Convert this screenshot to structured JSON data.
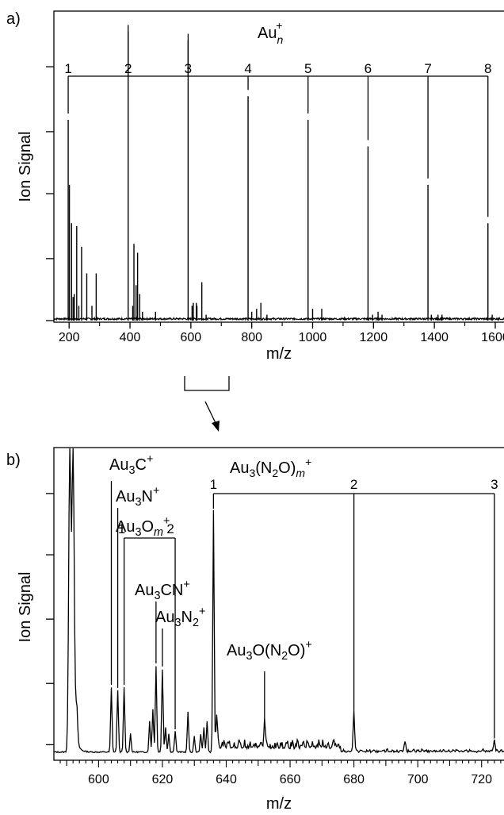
{
  "chart_data": [
    {
      "panel_label": "a)",
      "type": "line",
      "xlabel": "m/z",
      "ylabel": "Ion Signal",
      "xlim": [
        150,
        1660
      ],
      "ylim": [
        0,
        1.0
      ],
      "x_ticks": [
        200,
        400,
        600,
        800,
        1000,
        1200,
        1400,
        1600
      ],
      "series_title": "Au",
      "series_sub": "n",
      "series_sup": "+",
      "cluster_labels": [
        "1",
        "2",
        "3",
        "4",
        "5",
        "6",
        "7",
        "8"
      ],
      "cluster_mz": [
        197,
        394,
        591,
        788,
        985,
        1182,
        1379,
        1576
      ],
      "peaks": [
        {
          "x": 197,
          "y": 0.68
        },
        {
          "x": 201,
          "y": 0.46
        },
        {
          "x": 208,
          "y": 0.33
        },
        {
          "x": 213,
          "y": 0.08
        },
        {
          "x": 217,
          "y": 0.09
        },
        {
          "x": 225,
          "y": 0.32
        },
        {
          "x": 232,
          "y": 0.05
        },
        {
          "x": 241,
          "y": 0.25
        },
        {
          "x": 258,
          "y": 0.16
        },
        {
          "x": 275,
          "y": 0.05
        },
        {
          "x": 289,
          "y": 0.16
        },
        {
          "x": 394,
          "y": 0.98
        },
        {
          "x": 409,
          "y": 0.05
        },
        {
          "x": 413,
          "y": 0.26
        },
        {
          "x": 420,
          "y": 0.12
        },
        {
          "x": 425,
          "y": 0.23
        },
        {
          "x": 432,
          "y": 0.09
        },
        {
          "x": 441,
          "y": 0.03
        },
        {
          "x": 484,
          "y": 0.03
        },
        {
          "x": 591,
          "y": 0.95
        },
        {
          "x": 604,
          "y": 0.05
        },
        {
          "x": 608,
          "y": 0.06
        },
        {
          "x": 618,
          "y": 0.06
        },
        {
          "x": 620,
          "y": 0.05
        },
        {
          "x": 636,
          "y": 0.13
        },
        {
          "x": 650,
          "y": 0.02
        },
        {
          "x": 788,
          "y": 0.76
        },
        {
          "x": 800,
          "y": 0.03
        },
        {
          "x": 816,
          "y": 0.04
        },
        {
          "x": 830,
          "y": 0.06
        },
        {
          "x": 850,
          "y": 0.02
        },
        {
          "x": 985,
          "y": 0.68
        },
        {
          "x": 1000,
          "y": 0.04
        },
        {
          "x": 1030,
          "y": 0.04
        },
        {
          "x": 1182,
          "y": 0.59
        },
        {
          "x": 1197,
          "y": 0.02
        },
        {
          "x": 1215,
          "y": 0.03
        },
        {
          "x": 1228,
          "y": 0.02
        },
        {
          "x": 1379,
          "y": 0.46
        },
        {
          "x": 1390,
          "y": 0.02
        },
        {
          "x": 1412,
          "y": 0.02
        },
        {
          "x": 1425,
          "y": 0.02
        },
        {
          "x": 1576,
          "y": 0.33
        },
        {
          "x": 1590,
          "y": 0.02
        },
        {
          "x": 1610,
          "y": 0.01
        }
      ]
    },
    {
      "panel_label": "b)",
      "type": "line",
      "xlabel": "m/z",
      "ylabel": "Ion Signal",
      "xlim": [
        586,
        730
      ],
      "ylim": [
        0,
        1.0
      ],
      "x_ticks": [
        600,
        620,
        640,
        660,
        680,
        700,
        720
      ],
      "peaks": [
        {
          "x": 591,
          "y": 1.0
        },
        {
          "x": 592,
          "y": 1.0
        },
        {
          "x": 593,
          "y": 0.15
        },
        {
          "x": 604,
          "y": 0.21
        },
        {
          "x": 606,
          "y": 0.2
        },
        {
          "x": 608,
          "y": 0.21
        },
        {
          "x": 610,
          "y": 0.06
        },
        {
          "x": 616,
          "y": 0.1
        },
        {
          "x": 617,
          "y": 0.14
        },
        {
          "x": 618,
          "y": 0.28
        },
        {
          "x": 620,
          "y": 0.27
        },
        {
          "x": 621,
          "y": 0.08
        },
        {
          "x": 622,
          "y": 0.06
        },
        {
          "x": 624,
          "y": 0.07
        },
        {
          "x": 628,
          "y": 0.13
        },
        {
          "x": 630,
          "y": 0.05
        },
        {
          "x": 632,
          "y": 0.06
        },
        {
          "x": 633,
          "y": 0.08
        },
        {
          "x": 634,
          "y": 0.1
        },
        {
          "x": 636,
          "y": 0.79
        },
        {
          "x": 637,
          "y": 0.12
        },
        {
          "x": 652,
          "y": 0.08
        },
        {
          "x": 680,
          "y": 0.13
        },
        {
          "x": 696,
          "y": 0.03
        },
        {
          "x": 724,
          "y": 0.04
        }
      ],
      "annotations": [
        {
          "base": "Au",
          "sub1": "3",
          "rest": "C",
          "sub2": "",
          "sup": "+",
          "x": 604
        },
        {
          "base": "Au",
          "sub1": "3",
          "rest": "N",
          "sub2": "",
          "sup": "+",
          "x": 606
        },
        {
          "base": "Au",
          "sub1": "3",
          "rest": "O",
          "sub2": "m",
          "sup": "+",
          "x": 608
        },
        {
          "base": "Au",
          "sub1": "3",
          "rest": "CN",
          "sub2": "",
          "sup": "+",
          "x": 618
        },
        {
          "base": "Au",
          "sub1": "3",
          "rest": "N",
          "sub2": "2",
          "sup": "+",
          "x": 620
        },
        {
          "base": "Au",
          "sub1": "3",
          "rest": "O(N",
          "sub2": "2",
          "tail": "O)",
          "sup": "+",
          "x": 652
        }
      ],
      "series_title": {
        "base": "Au",
        "sub1": "3",
        "mid": "(N",
        "sub2": "2",
        "rest": "O)",
        "sub3": "m",
        "sup": "+"
      },
      "n2o_labels": [
        "1",
        "2",
        "3"
      ],
      "n2o_mz": [
        636,
        680,
        724
      ],
      "ao_labels": [
        "1",
        "2"
      ],
      "ao_mz": [
        608,
        624
      ]
    }
  ]
}
